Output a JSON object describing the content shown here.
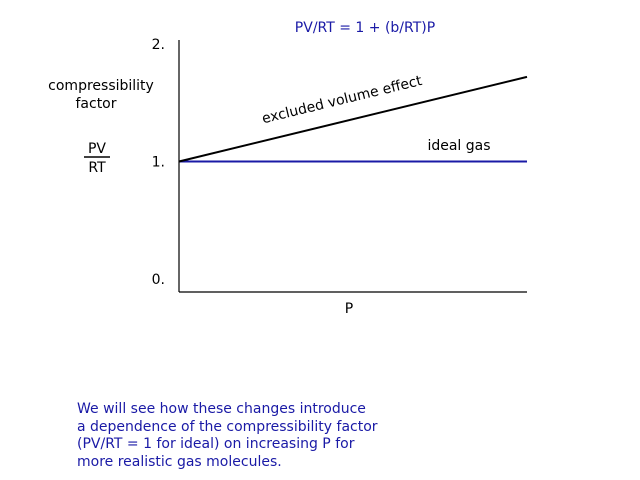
{
  "chart_data": {
    "type": "line",
    "title": "PV/RT = 1 + (b/RT)P",
    "xlabel": "P",
    "ylabel": {
      "lines": [
        "compressibility",
        "factor"
      ],
      "fraction_numerator": "PV",
      "fraction_denominator": "RT"
    },
    "x": [
      0,
      1
    ],
    "ylim": [
      0,
      2
    ],
    "yticks": [
      {
        "value": 0,
        "label": "0."
      },
      {
        "value": 1,
        "label": "1."
      },
      {
        "value": 2,
        "label": "2."
      }
    ],
    "grid": false,
    "series": [
      {
        "name": "ideal gas",
        "values": [
          1.0,
          1.0
        ],
        "color": "#1a1aa6"
      },
      {
        "name": "excluded volume effect",
        "values": [
          1.0,
          1.72
        ],
        "color": "#000000"
      }
    ],
    "colors": {
      "axis": "#000000",
      "title": "#1a1aa6",
      "text": "#000000"
    }
  },
  "caption": {
    "lines": [
      "We will see how these changes introduce",
      "a dependence of the compressibility factor",
      "(PV/RT = 1 for ideal) on increasing P for",
      "more realistic gas molecules."
    ],
    "color": "#1a1aa6"
  }
}
